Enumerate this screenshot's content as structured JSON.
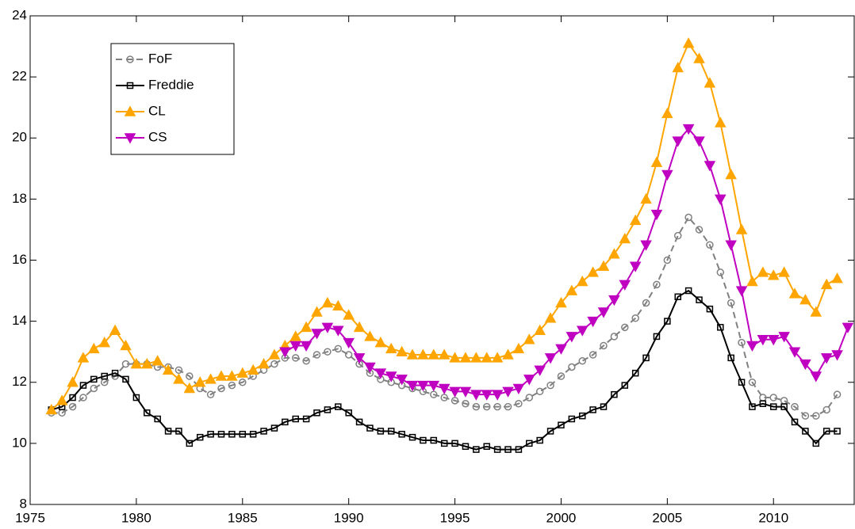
{
  "chart_data": {
    "type": "line",
    "x": [
      1976,
      1976.5,
      1977,
      1977.5,
      1978,
      1978.5,
      1979,
      1979.5,
      1980,
      1980.5,
      1981,
      1981.5,
      1982,
      1982.5,
      1983,
      1983.5,
      1984,
      1984.5,
      1985,
      1985.5,
      1986,
      1986.5,
      1987,
      1987.5,
      1988,
      1988.5,
      1989,
      1989.5,
      1990,
      1990.5,
      1991,
      1991.5,
      1992,
      1992.5,
      1993,
      1993.5,
      1994,
      1994.5,
      1995,
      1995.5,
      1996,
      1996.5,
      1997,
      1997.5,
      1998,
      1998.5,
      1999,
      1999.5,
      2000,
      2000.5,
      2001,
      2001.5,
      2002,
      2002.5,
      2003,
      2003.5,
      2004,
      2004.5,
      2005,
      2005.5,
      2006,
      2006.5,
      2007,
      2007.5,
      2008,
      2008.5,
      2009,
      2009.5,
      2010,
      2010.5,
      2011,
      2011.5,
      2012,
      2012.5,
      2013,
      2013.5
    ],
    "series": [
      {
        "name": "FoF",
        "color": "#808080",
        "marker": "circle",
        "dash": true,
        "values": [
          11.0,
          11.0,
          11.2,
          11.5,
          11.8,
          12.0,
          12.2,
          12.6,
          12.6,
          12.6,
          12.5,
          12.5,
          12.4,
          12.2,
          11.8,
          11.6,
          11.8,
          11.9,
          12.0,
          12.2,
          12.4,
          12.6,
          12.8,
          12.8,
          12.7,
          12.9,
          13.0,
          13.1,
          12.9,
          12.6,
          12.3,
          12.1,
          12.0,
          11.9,
          11.8,
          11.7,
          11.6,
          11.5,
          11.4,
          11.3,
          11.2,
          11.2,
          11.2,
          11.2,
          11.3,
          11.5,
          11.7,
          11.9,
          12.2,
          12.5,
          12.7,
          12.9,
          13.2,
          13.5,
          13.8,
          14.1,
          14.6,
          15.2,
          16.0,
          16.8,
          17.4,
          17.0,
          16.5,
          15.6,
          14.6,
          13.3,
          12.0,
          11.5,
          11.5,
          11.4,
          11.2,
          10.9,
          10.9,
          11.1,
          11.6,
          null
        ]
      },
      {
        "name": "Freddie",
        "color": "#000000",
        "marker": "square",
        "dash": false,
        "values": [
          11.1,
          11.2,
          11.5,
          11.9,
          12.1,
          12.2,
          12.3,
          12.1,
          11.5,
          11.0,
          10.8,
          10.4,
          10.4,
          10.0,
          10.2,
          10.3,
          10.3,
          10.3,
          10.3,
          10.3,
          10.4,
          10.5,
          10.7,
          10.8,
          10.8,
          11.0,
          11.1,
          11.2,
          11.0,
          10.7,
          10.5,
          10.4,
          10.4,
          10.3,
          10.2,
          10.1,
          10.1,
          10.0,
          10.0,
          9.9,
          9.8,
          9.9,
          9.8,
          9.8,
          9.8,
          10.0,
          10.1,
          10.4,
          10.6,
          10.8,
          10.9,
          11.1,
          11.2,
          11.6,
          11.9,
          12.3,
          12.8,
          13.5,
          14.0,
          14.8,
          15.0,
          14.7,
          14.4,
          13.8,
          12.8,
          12.0,
          11.2,
          11.3,
          11.2,
          11.2,
          10.7,
          10.4,
          10.0,
          10.4,
          10.4,
          null
        ]
      },
      {
        "name": "CL",
        "color": "#ffa500",
        "marker": "triangle-up",
        "dash": false,
        "values": [
          11.1,
          11.4,
          12.0,
          12.8,
          13.1,
          13.3,
          13.7,
          13.2,
          12.6,
          12.6,
          12.7,
          12.4,
          12.1,
          11.8,
          12.0,
          12.1,
          12.2,
          12.2,
          12.3,
          12.4,
          12.6,
          12.9,
          13.2,
          13.5,
          13.8,
          14.3,
          14.6,
          14.5,
          14.2,
          13.8,
          13.5,
          13.3,
          13.1,
          13.0,
          12.9,
          12.9,
          12.9,
          12.9,
          12.8,
          12.8,
          12.8,
          12.8,
          12.8,
          12.9,
          13.1,
          13.4,
          13.7,
          14.1,
          14.6,
          15.0,
          15.3,
          15.6,
          15.8,
          16.2,
          16.7,
          17.3,
          18.0,
          19.2,
          20.8,
          22.3,
          23.1,
          22.6,
          21.8,
          20.5,
          18.8,
          17.0,
          15.3,
          15.6,
          15.5,
          15.6,
          14.9,
          14.7,
          14.3,
          15.2,
          15.4,
          null
        ]
      },
      {
        "name": "CS",
        "color": "#c000c0",
        "marker": "triangle-down",
        "dash": false,
        "values": [
          null,
          null,
          null,
          null,
          null,
          null,
          null,
          null,
          null,
          null,
          null,
          null,
          null,
          null,
          null,
          null,
          null,
          null,
          null,
          null,
          null,
          null,
          13.0,
          13.2,
          13.2,
          13.6,
          13.8,
          13.7,
          13.3,
          12.8,
          12.5,
          12.3,
          12.2,
          12.1,
          11.9,
          11.9,
          11.9,
          11.8,
          11.7,
          11.7,
          11.6,
          11.6,
          11.6,
          11.7,
          11.8,
          12.1,
          12.4,
          12.8,
          13.1,
          13.5,
          13.7,
          14.0,
          14.3,
          14.7,
          15.2,
          15.8,
          16.5,
          17.5,
          18.8,
          19.9,
          20.3,
          19.9,
          19.1,
          18.0,
          16.5,
          15.0,
          13.2,
          13.4,
          13.4,
          13.5,
          13.0,
          12.6,
          12.2,
          12.8,
          12.9,
          13.8
        ]
      }
    ],
    "xlim": [
      1975,
      2013.8
    ],
    "xticks": [
      1975,
      1980,
      1985,
      1990,
      1995,
      2000,
      2005,
      2010
    ],
    "ylim": [
      8,
      24
    ],
    "yticks": [
      8,
      10,
      12,
      14,
      16,
      18,
      20,
      22,
      24
    ],
    "grid": false,
    "legend": "upper left"
  }
}
